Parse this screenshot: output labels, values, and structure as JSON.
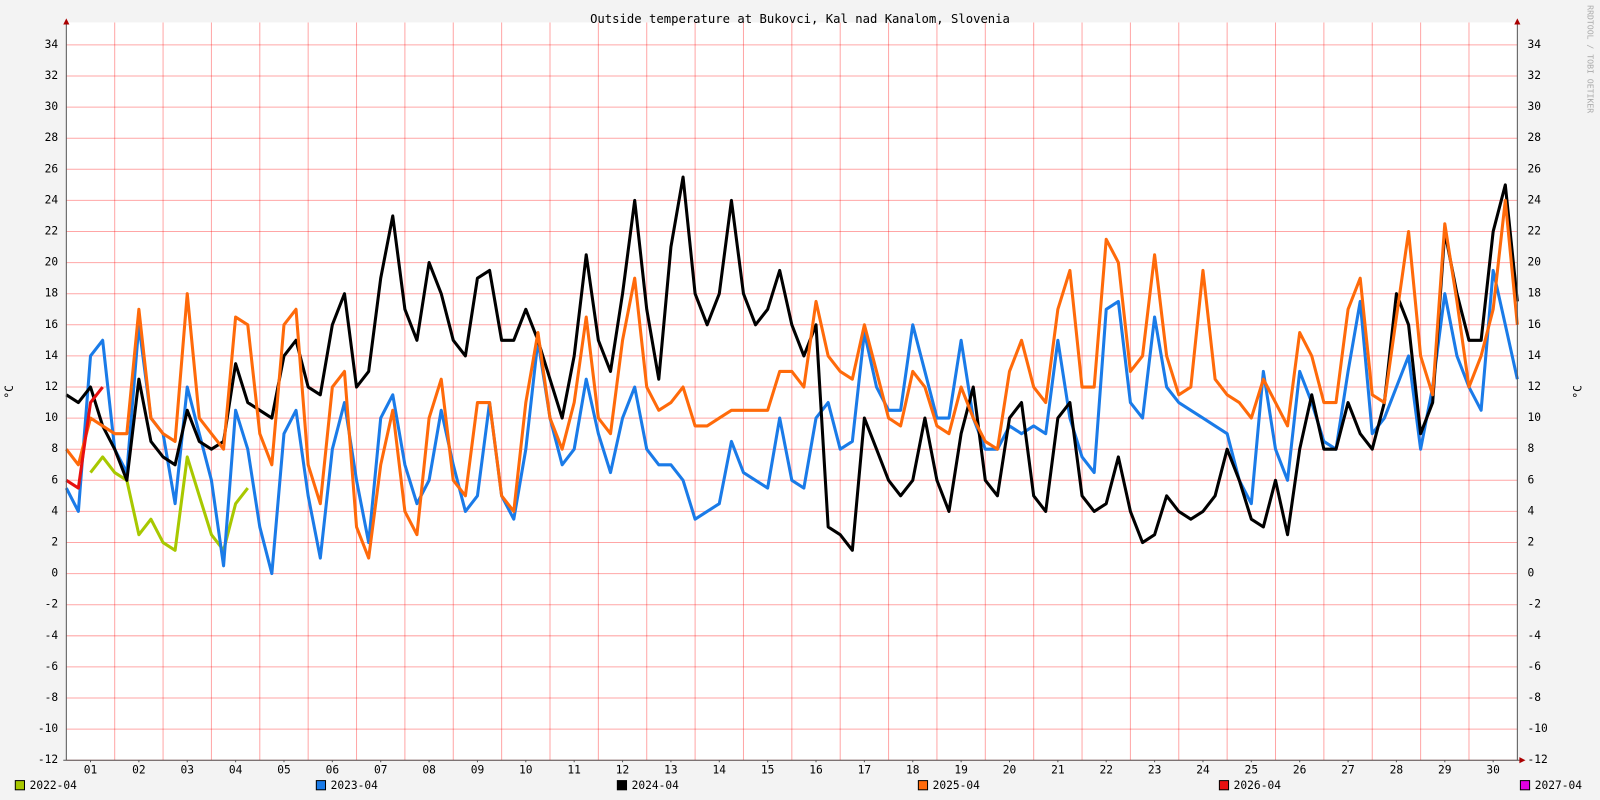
{
  "chart_data": {
    "type": "line",
    "title": "Outside temperature at Bukovci, Kal nad Kanalom, Slovenia",
    "y_label": "°C",
    "watermark": "RRDTOOL / TOBI OETIKER",
    "xlim": [
      0,
      30
    ],
    "ylim": [
      -12,
      34
    ],
    "yticks": [
      -12,
      -10,
      -8,
      -6,
      -4,
      -2,
      0,
      2,
      4,
      6,
      8,
      10,
      12,
      14,
      16,
      18,
      20,
      22,
      24,
      26,
      28,
      30,
      32,
      34
    ],
    "xticks": [
      {
        "value": 0.5,
        "label": "01"
      },
      {
        "value": 1.5,
        "label": "02"
      },
      {
        "value": 2.5,
        "label": "03"
      },
      {
        "value": 3.5,
        "label": "04"
      },
      {
        "value": 4.5,
        "label": "05"
      },
      {
        "value": 5.5,
        "label": "06"
      },
      {
        "value": 6.5,
        "label": "07"
      },
      {
        "value": 7.5,
        "label": "08"
      },
      {
        "value": 8.5,
        "label": "09"
      },
      {
        "value": 9.5,
        "label": "10"
      },
      {
        "value": 10.5,
        "label": "11"
      },
      {
        "value": 11.5,
        "label": "12"
      },
      {
        "value": 12.5,
        "label": "13"
      },
      {
        "value": 13.5,
        "label": "14"
      },
      {
        "value": 14.5,
        "label": "15"
      },
      {
        "value": 15.5,
        "label": "16"
      },
      {
        "value": 16.5,
        "label": "17"
      },
      {
        "value": 17.5,
        "label": "18"
      },
      {
        "value": 18.5,
        "label": "19"
      },
      {
        "value": 19.5,
        "label": "20"
      },
      {
        "value": 20.5,
        "label": "21"
      },
      {
        "value": 21.5,
        "label": "22"
      },
      {
        "value": 22.5,
        "label": "23"
      },
      {
        "value": 23.5,
        "label": "24"
      },
      {
        "value": 24.5,
        "label": "25"
      },
      {
        "value": 25.5,
        "label": "26"
      },
      {
        "value": 26.5,
        "label": "27"
      },
      {
        "value": 27.5,
        "label": "28"
      },
      {
        "value": 28.5,
        "label": "29"
      },
      {
        "value": 29.5,
        "label": "30"
      }
    ],
    "xgrid": [
      1,
      2,
      3,
      4,
      5,
      6,
      7,
      8,
      9,
      10,
      11,
      12,
      13,
      14,
      15,
      16,
      17,
      18,
      19,
      20,
      21,
      22,
      23,
      24,
      25,
      26,
      27,
      28,
      29
    ],
    "grid": true,
    "x": [
      0,
      0.25,
      0.5,
      0.75,
      1,
      1.25,
      1.5,
      1.75,
      2,
      2.25,
      2.5,
      2.75,
      3,
      3.25,
      3.5,
      3.75,
      4,
      4.25,
      4.5,
      4.75,
      5,
      5.25,
      5.5,
      5.75,
      6,
      6.25,
      6.5,
      6.75,
      7,
      7.25,
      7.5,
      7.75,
      8,
      8.25,
      8.5,
      8.75,
      9,
      9.25,
      9.5,
      9.75,
      10,
      10.25,
      10.5,
      10.75,
      11,
      11.25,
      11.5,
      11.75,
      12,
      12.25,
      12.5,
      12.75,
      13,
      13.25,
      13.5,
      13.75,
      14,
      14.25,
      14.5,
      14.75,
      15,
      15.25,
      15.5,
      15.75,
      16,
      16.25,
      16.5,
      16.75,
      17,
      17.25,
      17.5,
      17.75,
      18,
      18.25,
      18.5,
      18.75,
      19,
      19.25,
      19.5,
      19.75,
      20,
      20.25,
      20.5,
      20.75,
      21,
      21.25,
      21.5,
      21.75,
      22,
      22.25,
      22.5,
      22.75,
      23,
      23.25,
      23.5,
      23.75,
      24,
      24.25,
      24.5,
      24.75,
      25,
      25.25,
      25.5,
      25.75,
      26,
      26.25,
      26.5,
      26.75,
      27,
      27.25,
      27.5,
      27.75,
      28,
      28.25,
      28.5,
      28.75,
      29,
      29.25,
      29.5,
      29.75,
      30
    ],
    "series": [
      {
        "name": "2022-04",
        "color": "#a8c800",
        "values": [
          null,
          null,
          6.5,
          7.5,
          6.5,
          6,
          2.5,
          3.5,
          2,
          1.5,
          7.5,
          5,
          2.5,
          1.5,
          4.5,
          5.5,
          null,
          null,
          null,
          null,
          null,
          null,
          null,
          null,
          null,
          null,
          null,
          null,
          null,
          null,
          null,
          null,
          null,
          null,
          null,
          null,
          null,
          null,
          null,
          null,
          null,
          null,
          null,
          null,
          null,
          null,
          null,
          null,
          null,
          null,
          null,
          null,
          null,
          null,
          null,
          null,
          null,
          null,
          null,
          null,
          null,
          null,
          null,
          null,
          null,
          null,
          null,
          null,
          null,
          null,
          null,
          null,
          null,
          null,
          null,
          null,
          null,
          null,
          null,
          null,
          null,
          null,
          null,
          null,
          null,
          null,
          null,
          null,
          null,
          null,
          null,
          null,
          null,
          null,
          null,
          null,
          null,
          null,
          null,
          null,
          null,
          null,
          null,
          null,
          null,
          null,
          null,
          null,
          null,
          null,
          null,
          null,
          null,
          null,
          null,
          null,
          null,
          null,
          null,
          null,
          null
        ]
      },
      {
        "name": "2023-04",
        "color": "#1a7be8",
        "values": [
          5.5,
          4,
          14,
          15,
          8,
          6.5,
          16,
          10,
          9,
          4.5,
          12,
          9,
          6,
          0.5,
          10.5,
          8,
          3,
          0,
          9,
          10.5,
          5,
          1,
          8,
          11,
          6,
          2,
          10,
          11.5,
          7,
          4.5,
          6,
          10.5,
          7,
          4,
          5,
          11,
          5,
          3.5,
          8,
          15,
          10,
          7,
          8,
          12.5,
          9,
          6.5,
          10,
          12,
          8,
          7,
          7,
          6,
          3.5,
          4,
          4.5,
          8.5,
          6.5,
          6,
          5.5,
          10,
          6,
          5.5,
          10,
          11,
          8,
          8.5,
          15.5,
          12,
          10.5,
          10.5,
          16,
          13,
          10,
          10,
          15,
          10,
          8,
          8,
          9.5,
          9,
          9.5,
          9,
          15,
          10,
          7.5,
          6.5,
          17,
          17.5,
          11,
          10,
          16.5,
          12,
          11,
          10.5,
          10,
          9.5,
          9,
          6,
          4.5,
          13,
          8,
          6,
          13,
          11,
          8.5,
          8,
          13,
          17.5,
          9,
          10,
          12,
          14,
          8,
          12,
          18,
          14,
          12,
          10.5,
          19.5,
          16,
          12.5
        ]
      },
      {
        "name": "2024-04",
        "color": "#000000",
        "values": [
          11.5,
          11,
          12,
          9.5,
          8,
          6,
          12.5,
          8.5,
          7.5,
          7,
          10.5,
          8.5,
          8,
          8.5,
          13.5,
          11,
          10.5,
          10,
          14,
          15,
          12,
          11.5,
          16,
          18,
          12,
          13,
          19,
          23,
          17,
          15,
          20,
          18,
          15,
          14,
          19,
          19.5,
          15,
          15,
          17,
          15,
          12.5,
          10,
          14,
          20.5,
          15,
          13,
          18,
          24,
          17,
          12.5,
          21,
          25.5,
          18,
          16,
          18,
          24,
          18,
          16,
          17,
          19.5,
          16,
          14,
          16,
          3,
          2.5,
          1.5,
          10,
          8,
          6,
          5,
          6,
          10,
          6,
          4,
          9,
          12,
          6,
          5,
          10,
          11,
          5,
          4,
          10,
          11,
          5,
          4,
          4.5,
          7.5,
          4,
          2,
          2.5,
          5,
          4,
          3.5,
          4,
          5,
          8,
          6,
          3.5,
          3,
          6,
          2.5,
          8,
          11.5,
          8,
          8,
          11,
          9,
          8,
          11,
          18,
          16,
          9,
          11,
          22,
          18,
          15,
          15,
          22,
          25,
          17.5
        ]
      },
      {
        "name": "2025-04",
        "color": "#ff6a0a",
        "values": [
          8,
          7,
          10,
          9.5,
          9,
          9,
          17,
          10,
          9,
          8.5,
          18,
          10,
          9,
          8,
          16.5,
          16,
          9,
          7,
          16,
          17,
          7,
          4.5,
          12,
          13,
          3,
          1,
          7,
          10.5,
          4,
          2.5,
          10,
          12.5,
          6,
          5,
          11,
          11,
          5,
          4,
          11,
          15.5,
          10,
          8,
          11,
          16.5,
          10,
          9,
          15,
          19,
          12,
          10.5,
          11,
          12,
          9.5,
          9.5,
          10,
          10.5,
          10.5,
          10.5,
          10.5,
          13,
          13,
          12,
          17.5,
          14,
          13,
          12.5,
          16,
          13,
          10,
          9.5,
          13,
          12,
          9.5,
          9,
          12,
          10,
          8.5,
          8,
          13,
          15,
          12,
          11,
          17,
          19.5,
          12,
          12,
          21.5,
          20,
          13,
          14,
          20.5,
          14,
          11.5,
          12,
          19.5,
          12.5,
          11.5,
          11,
          10,
          12.5,
          11,
          9.5,
          15.5,
          14,
          11,
          11,
          17,
          19,
          11.5,
          11,
          16.5,
          22,
          14,
          11.5,
          22.5,
          17.5,
          12,
          14,
          17,
          24,
          16
        ]
      },
      {
        "name": "2026-04",
        "color": "#e81010",
        "values": [
          6,
          5.5,
          11,
          12,
          null,
          null,
          null,
          null,
          null,
          null,
          null,
          null,
          null,
          null,
          null,
          null,
          null,
          null,
          null,
          null,
          null,
          null,
          null,
          null,
          null,
          null,
          null,
          null,
          null,
          null,
          null,
          null,
          null,
          null,
          null,
          null,
          null,
          null,
          null,
          null,
          null,
          null,
          null,
          null,
          null,
          null,
          null,
          null,
          null,
          null,
          null,
          null,
          null,
          null,
          null,
          null,
          null,
          null,
          null,
          null,
          null,
          null,
          null,
          null,
          null,
          null,
          null,
          null,
          null,
          null,
          null,
          null,
          null,
          null,
          null,
          null,
          null,
          null,
          null,
          null,
          null,
          null,
          null,
          null,
          null,
          null,
          null,
          null,
          null,
          null,
          null,
          null,
          null,
          null,
          null,
          null,
          null,
          null,
          null,
          null,
          null,
          null,
          null,
          null,
          null,
          null,
          null,
          null,
          null,
          null,
          null,
          null,
          null,
          null,
          null,
          null,
          null,
          null,
          null,
          null,
          null
        ]
      },
      {
        "name": "2027-04",
        "color": "#e000e0",
        "values": [
          null,
          null,
          null,
          null,
          null,
          null,
          null,
          null,
          null,
          null,
          null,
          null,
          null,
          null,
          null,
          null,
          null,
          null,
          null,
          null,
          null,
          null,
          null,
          null,
          null,
          null,
          null,
          null,
          null,
          null,
          null,
          null,
          null,
          null,
          null,
          null,
          null,
          null,
          null,
          null,
          null,
          null,
          null,
          null,
          null,
          null,
          null,
          null,
          null,
          null,
          null,
          null,
          null,
          null,
          null,
          null,
          null,
          null,
          null,
          null,
          null,
          null,
          null,
          null,
          null,
          null,
          null,
          null,
          null,
          null,
          null,
          null,
          null,
          null,
          null,
          null,
          null,
          null,
          null,
          null,
          null,
          null,
          null,
          null,
          null,
          null,
          null,
          null,
          null,
          null,
          null,
          null,
          null,
          null,
          null,
          null,
          null,
          null,
          null,
          null,
          null,
          null,
          null,
          null,
          null,
          null,
          null,
          null,
          null,
          null,
          null,
          null,
          null,
          null,
          null,
          null,
          null,
          null,
          null,
          null,
          null
        ]
      }
    ]
  }
}
